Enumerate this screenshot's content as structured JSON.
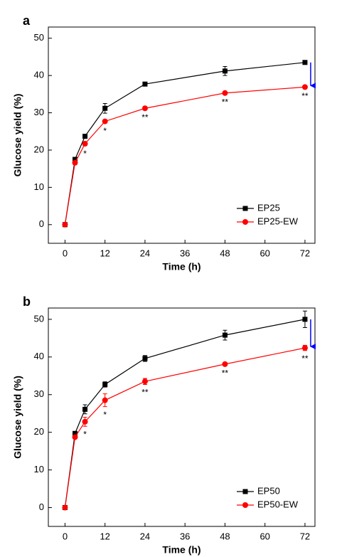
{
  "chart_data": [
    {
      "type": "line",
      "panel_label": "a",
      "xlabel": "Time (h)",
      "ylabel": "Glucose yield (%)",
      "xlim": [
        -5,
        75
      ],
      "ylim": [
        -5,
        53
      ],
      "xticks": [
        0,
        12,
        24,
        36,
        48,
        60,
        72
      ],
      "yticks": [
        0,
        10,
        20,
        30,
        40,
        50
      ],
      "x": [
        0,
        3,
        6,
        12,
        24,
        48,
        72
      ],
      "series": [
        {
          "name": "EP25",
          "color": "#000000",
          "marker": "square",
          "values": [
            0,
            17.5,
            23.7,
            31.2,
            37.7,
            41.2,
            43.5
          ],
          "errors": [
            0,
            0.3,
            0.5,
            1.3,
            0.3,
            1.2,
            0.3
          ]
        },
        {
          "name": "EP25-EW",
          "color": "#ff0000",
          "marker": "circle",
          "values": [
            0,
            16.6,
            21.7,
            27.7,
            31.2,
            35.3,
            36.9
          ],
          "errors": [
            0,
            0.3,
            0.5,
            0.4,
            0.3,
            0.3,
            0.3
          ]
        }
      ],
      "annotations": [
        {
          "x": 6,
          "text": "*"
        },
        {
          "x": 12,
          "text": "*"
        },
        {
          "x": 24,
          "text": "**"
        },
        {
          "x": 48,
          "text": "**"
        },
        {
          "x": 72,
          "text": "**"
        }
      ],
      "legend": "lower right"
    },
    {
      "type": "line",
      "panel_label": "b",
      "xlabel": "Time (h)",
      "ylabel": "Glucose yield (%)",
      "xlim": [
        -5,
        75
      ],
      "ylim": [
        -5,
        53
      ],
      "xticks": [
        0,
        12,
        24,
        36,
        48,
        60,
        72
      ],
      "yticks": [
        0,
        10,
        20,
        30,
        40,
        50
      ],
      "x": [
        0,
        3,
        6,
        12,
        24,
        48,
        72
      ],
      "series": [
        {
          "name": "EP50",
          "color": "#000000",
          "marker": "square",
          "values": [
            0,
            19.7,
            26.1,
            32.7,
            39.6,
            45.8,
            50.0
          ],
          "errors": [
            0,
            0.3,
            1.2,
            0.7,
            0.8,
            1.3,
            2.2
          ]
        },
        {
          "name": "EP50-EW",
          "color": "#ff0000",
          "marker": "circle",
          "values": [
            0,
            18.7,
            22.8,
            28.5,
            33.5,
            38.1,
            42.4
          ],
          "errors": [
            0,
            0.3,
            1.2,
            1.7,
            0.8,
            0.3,
            0.7
          ]
        }
      ],
      "annotations": [
        {
          "x": 6,
          "text": "*"
        },
        {
          "x": 12,
          "text": "*"
        },
        {
          "x": 24,
          "text": "**"
        },
        {
          "x": 48,
          "text": "**"
        },
        {
          "x": 72,
          "text": "**"
        }
      ],
      "legend": "lower right"
    }
  ]
}
